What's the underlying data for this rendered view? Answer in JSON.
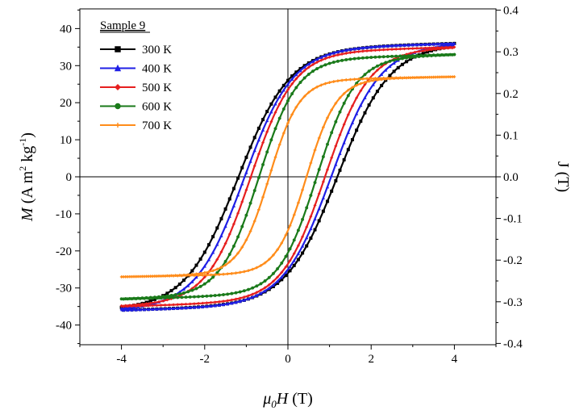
{
  "chart_data": {
    "type": "line",
    "title": "",
    "legend_title": "Sample 9",
    "legend_position": "top-left",
    "xlabel_parts": [
      "μ",
      "0",
      "H",
      " (T)"
    ],
    "ylabel_left_parts": [
      "M",
      " (A m",
      "2",
      " kg",
      "-1",
      ")"
    ],
    "ylabel_right": "J (T)",
    "xlim": [
      -5,
      5
    ],
    "ylim_left": [
      -45,
      45
    ],
    "ylim_right": [
      -0.4,
      0.4
    ],
    "x_ticks": [
      "-4",
      "-2",
      "0",
      "2",
      "4"
    ],
    "y_left_ticks": [
      "-40",
      "-30",
      "-20",
      "-10",
      "0",
      "10",
      "20",
      "30",
      "40"
    ],
    "y_right_ticks": [
      "-0.4",
      "-0.3",
      "-0.2",
      "-0.1",
      "0.0",
      "0.1",
      "0.2",
      "0.3",
      "0.4"
    ],
    "series": [
      {
        "name": "300 K",
        "color": "#000000",
        "marker": "square",
        "Ms_at_4T": 36,
        "Mr": 26,
        "Hc": 1.2,
        "slope": 0.85
      },
      {
        "name": "400 K",
        "color": "#1f1fe6",
        "marker": "triangle",
        "Ms_at_4T": 36,
        "Mr": 25,
        "Hc": 1.05,
        "slope": 0.9
      },
      {
        "name": "500 K",
        "color": "#e61f1f",
        "marker": "diamond",
        "Ms_at_4T": 35,
        "Mr": 23.5,
        "Hc": 0.9,
        "slope": 0.95
      },
      {
        "name": "600 K",
        "color": "#1a7a1a",
        "marker": "circle",
        "Ms_at_4T": 33,
        "Mr": 20.5,
        "Hc": 0.7,
        "slope": 0.85
      },
      {
        "name": "700 K",
        "color": "#ff8c1a",
        "marker": "star",
        "Ms_at_4T": 27,
        "Mr": 14.5,
        "Hc": 0.45,
        "slope": 0.6
      }
    ]
  }
}
